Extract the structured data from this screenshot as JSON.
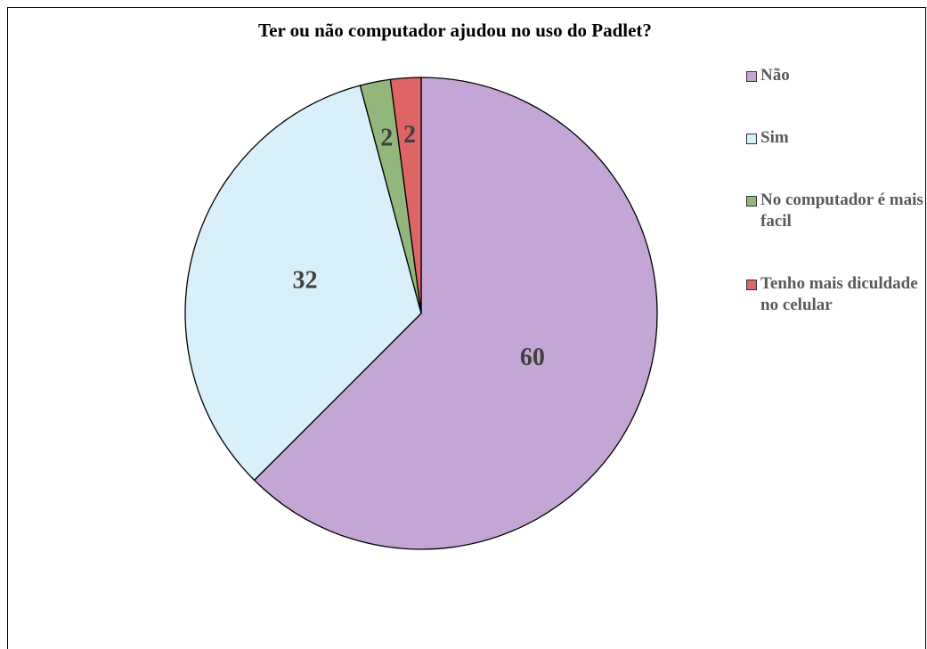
{
  "chart_data": {
    "type": "pie",
    "title": "Ter ou não computador ajudou no uso do Padlet?",
    "categories": [
      "Não",
      "Sim",
      "No computador é mais facil",
      "Tenho mais diculdade no celular"
    ],
    "values": [
      60,
      32,
      2,
      2
    ],
    "colors": [
      "#c3a5d6",
      "#d9f0fb",
      "#93b67c",
      "#de6466"
    ],
    "legend": "right"
  }
}
